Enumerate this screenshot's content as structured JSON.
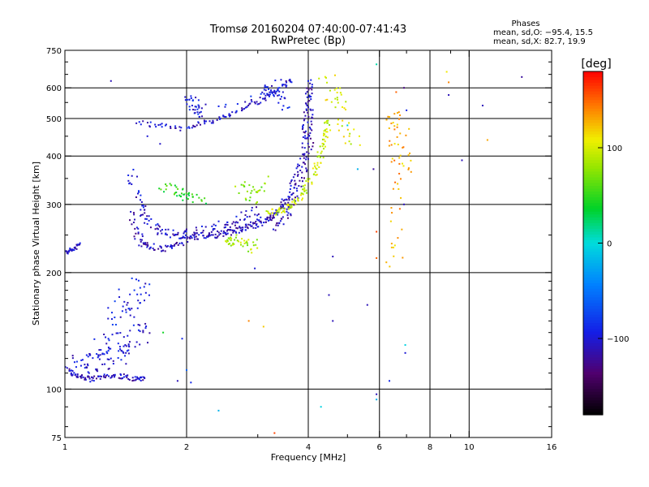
{
  "chart_data": {
    "type": "scatter",
    "title": "Tromsø 20160204 07:40:00-07:41:43",
    "subtitle": "RwPretec (Bp)",
    "xlabel": "Frequency [MHz]",
    "ylabel": "Stationary phase Virtual Height [km]",
    "x_scale": "log",
    "y_scale": "log",
    "xlim": [
      1,
      16
    ],
    "ylim": [
      75,
      750
    ],
    "x_ticks": [
      1,
      2,
      4,
      6,
      8,
      10,
      16
    ],
    "x_minor_ticks": [
      3,
      5,
      7,
      9
    ],
    "y_ticks": [
      75,
      100,
      200,
      300,
      400,
      500,
      600,
      750
    ],
    "grid": true,
    "stats": {
      "heading": "Phases",
      "line_o": "mean, sd,O: −95.4, 15.5",
      "line_x": "mean, sd,X:  82.7, 19.9"
    },
    "colorbar": {
      "label": "[deg]",
      "range": [
        -180,
        180
      ],
      "ticks": [
        100,
        0,
        -100
      ],
      "tick_labels": [
        "100",
        "0",
        "−100"
      ]
    },
    "series": [
      {
        "traces": [
          {
            "x": [
              1.0,
              1.04,
              1.08,
              1.12,
              1.16,
              1.22,
              1.3,
              1.38,
              1.46,
              1.52,
              1.58
            ],
            "y": [
              114,
              110,
              108,
              107,
              106,
              107,
              108,
              108,
              107,
              106,
              106
            ],
            "phase": -110,
            "jitter": 0.015
          },
          {
            "x": [
              1.05,
              1.1,
              1.15,
              1.2,
              1.26,
              1.32,
              1.38,
              1.44,
              1.5,
              1.55
            ],
            "y": [
              122,
              120,
              118,
              116,
              118,
              120,
              124,
              130,
              138,
              145
            ],
            "phase": -100,
            "jitter": 0.06
          },
          {
            "x": [
              1.25,
              1.3,
              1.35,
              1.4,
              1.45,
              1.5,
              1.55
            ],
            "y": [
              125,
              135,
              148,
              160,
              170,
              178,
              186
            ],
            "phase": -95,
            "jitter": 0.07
          },
          {
            "x": [
              1.0,
              1.03,
              1.06,
              1.09
            ],
            "y": [
              225,
              228,
              232,
              238
            ],
            "phase": -105,
            "jitter": 0.01
          },
          {
            "x": [
              1.46,
              1.5,
              1.55,
              1.6,
              1.7,
              1.8,
              1.9,
              2.0,
              2.1,
              2.2,
              2.3,
              2.4,
              2.5,
              2.6,
              2.7,
              2.8,
              2.9,
              3.0,
              3.1,
              3.2,
              3.3,
              3.4,
              3.5,
              3.6,
              3.7,
              3.8,
              3.9,
              4.0,
              4.05
            ],
            "y": [
              285,
              255,
              240,
              234,
              231,
              232,
              237,
              244,
              248,
              249,
              250,
              251,
              253,
              256,
              259,
              262,
              265,
              268,
              272,
              276,
              282,
              292,
              305,
              322,
              345,
              375,
              415,
              470,
              540
            ],
            "phase": -110,
            "jitter": 0.02
          },
          {
            "x": [
              1.46,
              1.5,
              1.55,
              1.6,
              1.7,
              1.8,
              1.9,
              2.0,
              2.2,
              2.4,
              2.6,
              2.8,
              3.0
            ],
            "y": [
              370,
              320,
              290,
              270,
              260,
              252,
              248,
              250,
              257,
              264,
              272,
              282,
              292
            ],
            "phase": -105,
            "jitter": 0.03
          },
          {
            "x": [
              1.52,
              1.7,
              1.9,
              2.1,
              2.3,
              2.5,
              2.7,
              2.9,
              3.1,
              3.3,
              3.5,
              3.65
            ],
            "y": [
              490,
              480,
              470,
              482,
              492,
              508,
              525,
              543,
              562,
              585,
              610,
              630
            ],
            "phase": -105,
            "jitter": 0.015
          },
          {
            "x": [
              2.0,
              2.05,
              2.1,
              2.15,
              3.1,
              3.2,
              3.3,
              3.4,
              3.5
            ],
            "y": [
              560,
              545,
              530,
              515,
              575,
              590,
              610,
              560,
              540
            ],
            "phase": -95,
            "jitter": 0.04
          },
          {
            "x": [
              3.3,
              3.45,
              3.6,
              3.75,
              3.9,
              4.0,
              4.1
            ],
            "y": [
              260,
              272,
              292,
              320,
              360,
              410,
              470
            ],
            "phase": -115,
            "jitter": 0.02
          },
          {
            "x": [
              3.9,
              3.95,
              4.0,
              4.02,
              4.04
            ],
            "y": [
              450,
              500,
              550,
              590,
              620
            ],
            "phase": -110,
            "jitter": 0.02
          },
          {
            "x": [
              3.2,
              3.35,
              3.5,
              3.65,
              3.8,
              3.95,
              4.1,
              4.2,
              4.3,
              4.4,
              4.45,
              4.5
            ],
            "y": [
              285,
              288,
              292,
              300,
              312,
              330,
              355,
              380,
              410,
              440,
              470,
              500
            ],
            "phase": 95,
            "jitter": 0.02
          },
          {
            "x": [
              1.75,
              1.85,
              1.95,
              2.05,
              2.2
            ],
            "y": [
              338,
              325,
              318,
              313,
              310
            ],
            "phase": 45,
            "jitter": 0.03
          },
          {
            "x": [
              2.7,
              2.85,
              3.0,
              3.1
            ],
            "y": [
              335,
              320,
              310,
              350
            ],
            "phase": 75,
            "jitter": 0.04
          },
          {
            "x": [
              4.4,
              4.6,
              4.8,
              5.0,
              5.2
            ],
            "y": [
              640,
              580,
              540,
              470,
              440
            ],
            "phase": 100,
            "jitter": 0.05
          },
          {
            "x": [
              2.5,
              2.6,
              2.7,
              2.85,
              3.0
            ],
            "y": [
              240,
              238,
              245,
              230,
              240
            ],
            "phase": 85,
            "jitter": 0.03
          },
          {
            "x": [
              6.5,
              6.6,
              6.7,
              6.8,
              6.9,
              6.5,
              6.7
            ],
            "y": [
              520,
              480,
              430,
              390,
              360,
              250,
              210
            ],
            "phase": 130,
            "jitter": 0.06
          }
        ],
        "points": [
          {
            "x": 5.9,
            "y": 690,
            "phase": 10
          },
          {
            "x": 6.6,
            "y": 585,
            "phase": 150
          },
          {
            "x": 6.9,
            "y": 600,
            "phase": -130
          },
          {
            "x": 7.0,
            "y": 525,
            "phase": -90
          },
          {
            "x": 8.8,
            "y": 660,
            "phase": 110
          },
          {
            "x": 8.9,
            "y": 620,
            "phase": 140
          },
          {
            "x": 8.9,
            "y": 575,
            "phase": -110
          },
          {
            "x": 10.8,
            "y": 540,
            "phase": -110
          },
          {
            "x": 13.5,
            "y": 640,
            "phase": -120
          },
          {
            "x": 9.6,
            "y": 390,
            "phase": -110
          },
          {
            "x": 11.1,
            "y": 440,
            "phase": 130
          },
          {
            "x": 5.9,
            "y": 255,
            "phase": 160
          },
          {
            "x": 5.8,
            "y": 370,
            "phase": -120
          },
          {
            "x": 5.9,
            "y": 218,
            "phase": 150
          },
          {
            "x": 4.6,
            "y": 220,
            "phase": -110
          },
          {
            "x": 5.6,
            "y": 165,
            "phase": -110
          },
          {
            "x": 4.5,
            "y": 175,
            "phase": -110
          },
          {
            "x": 4.6,
            "y": 150,
            "phase": -110
          },
          {
            "x": 5.9,
            "y": 97,
            "phase": -110
          },
          {
            "x": 5.9,
            "y": 94,
            "phase": -20
          },
          {
            "x": 6.35,
            "y": 105,
            "phase": -90
          },
          {
            "x": 6.95,
            "y": 130,
            "phase": -5
          },
          {
            "x": 6.95,
            "y": 124,
            "phase": -100
          },
          {
            "x": 4.3,
            "y": 90,
            "phase": -5
          },
          {
            "x": 2.4,
            "y": 88,
            "phase": -20
          },
          {
            "x": 3.3,
            "y": 77,
            "phase": 160
          },
          {
            "x": 2.05,
            "y": 104,
            "phase": -90
          },
          {
            "x": 2.85,
            "y": 150,
            "phase": 140
          },
          {
            "x": 3.1,
            "y": 145,
            "phase": 120
          },
          {
            "x": 2.95,
            "y": 205,
            "phase": -100
          },
          {
            "x": 1.3,
            "y": 625,
            "phase": -110
          },
          {
            "x": 1.72,
            "y": 430,
            "phase": -105
          },
          {
            "x": 1.6,
            "y": 450,
            "phase": -100
          },
          {
            "x": 1.95,
            "y": 135,
            "phase": -90
          },
          {
            "x": 1.75,
            "y": 140,
            "phase": 40
          },
          {
            "x": 2.0,
            "y": 112,
            "phase": -60
          },
          {
            "x": 1.9,
            "y": 105,
            "phase": -110
          },
          {
            "x": 5.3,
            "y": 370,
            "phase": -20
          },
          {
            "x": 5.0,
            "y": 480,
            "phase": -10
          },
          {
            "x": 7.1,
            "y": 470,
            "phase": 120
          },
          {
            "x": 6.9,
            "y": 300,
            "phase": -110
          },
          {
            "x": 2.15,
            "y": 505,
            "phase": -100
          }
        ]
      }
    ]
  }
}
